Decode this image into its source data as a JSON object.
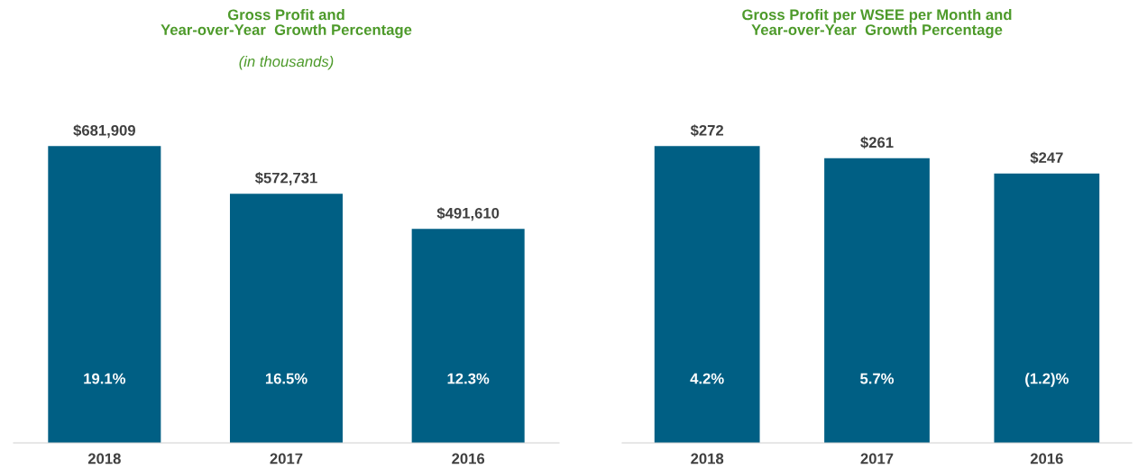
{
  "chart_data": [
    {
      "type": "bar",
      "title": "Gross Profit and\nYear-over-Year  Growth Percentage",
      "subtitle": "(in thousands)",
      "categories": [
        "2018",
        "2017",
        "2016"
      ],
      "values": [
        681909,
        572731,
        491610
      ],
      "color": "#005f84",
      "value_labels": [
        "$681,909",
        "$572,731",
        "$491,610"
      ],
      "tick_labels": "x",
      "grid": false,
      "legend": false,
      "annotations": [
        "19.1%",
        "16.5%",
        "12.3%"
      ]
    },
    {
      "type": "bar",
      "title": "Gross Profit per WSEE per Month and\nYear-over-Year  Growth Percentage",
      "categories": [
        "2018",
        "2017",
        "2016"
      ],
      "values": [
        272,
        261,
        247
      ],
      "color": "#005f84",
      "value_labels": [
        "$272",
        "$261",
        "$247"
      ],
      "tick_labels": "x",
      "grid": false,
      "legend": false,
      "annotations": [
        "4.2%",
        "5.7%",
        "(1.2)%"
      ]
    }
  ]
}
